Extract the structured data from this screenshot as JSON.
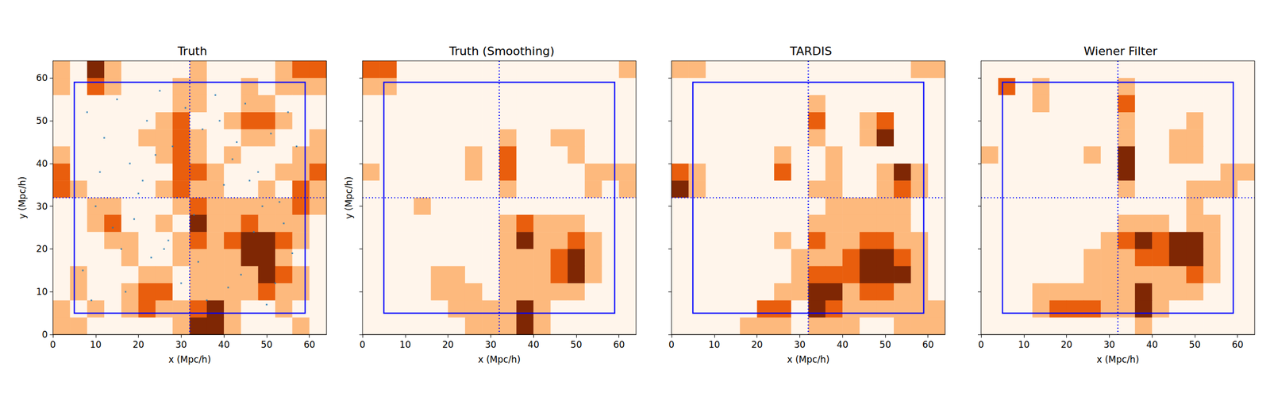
{
  "chart_data": [
    {
      "type": "heatmap",
      "title": "Truth",
      "xlabel": "x (Mpc/h)",
      "ylabel": "y (Mpc/h)",
      "xlim": [
        0,
        64
      ],
      "ylim": [
        0,
        64
      ],
      "xticks": [
        0,
        10,
        20,
        30,
        40,
        50,
        60
      ],
      "yticks": [
        0,
        10,
        20,
        30,
        40,
        50,
        60
      ],
      "box": {
        "x": [
          5,
          59
        ],
        "y": [
          5,
          59
        ]
      },
      "lines": {
        "x": 32,
        "y": 32
      },
      "points": {
        "x": [
          8,
          12,
          15,
          18,
          22,
          25,
          28,
          31,
          35,
          38,
          42,
          45,
          48,
          51,
          55,
          57,
          10,
          14,
          20,
          26,
          33,
          40,
          47,
          53,
          7,
          17,
          23,
          30,
          36,
          44,
          50,
          56,
          11,
          19,
          27,
          34,
          41,
          49,
          54,
          9,
          16,
          24,
          39,
          46,
          52,
          21,
          29,
          43
        ],
        "y": [
          52,
          46,
          55,
          40,
          50,
          57,
          44,
          53,
          48,
          56,
          41,
          54,
          38,
          47,
          52,
          44,
          30,
          25,
          33,
          20,
          28,
          35,
          24,
          31,
          15,
          10,
          18,
          12,
          8,
          14,
          7,
          19,
          38,
          27,
          22,
          17,
          11,
          30,
          26,
          8,
          20,
          42,
          50,
          36,
          12,
          36,
          32,
          45
        ]
      },
      "cells": [
        [
          1,
          0,
          3,
          1,
          0,
          0,
          0,
          0,
          1,
          0,
          0,
          0,
          0,
          1,
          2,
          2
        ],
        [
          1,
          0,
          2,
          1,
          0,
          0,
          0,
          1,
          1,
          0,
          0,
          1,
          0,
          1,
          1,
          1
        ],
        [
          0,
          0,
          0,
          0,
          0,
          0,
          0,
          1,
          1,
          0,
          0,
          1,
          1,
          0,
          0,
          0
        ],
        [
          0,
          0,
          0,
          0,
          0,
          0,
          1,
          2,
          0,
          0,
          1,
          2,
          2,
          1,
          0,
          0
        ],
        [
          0,
          0,
          0,
          0,
          0,
          1,
          1,
          2,
          1,
          0,
          0,
          1,
          1,
          0,
          0,
          1
        ],
        [
          1,
          0,
          0,
          0,
          0,
          0,
          1,
          2,
          1,
          0,
          1,
          0,
          0,
          0,
          1,
          1
        ],
        [
          2,
          0,
          0,
          0,
          0,
          0,
          0,
          2,
          2,
          1,
          0,
          0,
          0,
          1,
          1,
          2
        ],
        [
          2,
          1,
          0,
          0,
          0,
          0,
          1,
          2,
          1,
          1,
          0,
          0,
          1,
          0,
          2,
          1
        ],
        [
          0,
          0,
          1,
          1,
          0,
          0,
          0,
          1,
          2,
          1,
          1,
          1,
          1,
          1,
          2,
          1
        ],
        [
          0,
          0,
          1,
          2,
          0,
          0,
          1,
          0,
          3,
          1,
          1,
          2,
          1,
          1,
          1,
          0
        ],
        [
          0,
          0,
          0,
          1,
          1,
          0,
          0,
          1,
          2,
          1,
          2,
          3,
          3,
          2,
          1,
          0
        ],
        [
          0,
          0,
          0,
          0,
          1,
          0,
          0,
          1,
          1,
          1,
          1,
          3,
          3,
          1,
          0,
          0
        ],
        [
          0,
          1,
          0,
          0,
          0,
          1,
          1,
          0,
          1,
          1,
          1,
          1,
          3,
          2,
          1,
          0
        ],
        [
          0,
          1,
          0,
          0,
          1,
          2,
          2,
          0,
          1,
          1,
          1,
          1,
          2,
          1,
          1,
          0
        ],
        [
          1,
          0,
          1,
          0,
          1,
          2,
          1,
          1,
          2,
          3,
          1,
          0,
          0,
          1,
          0,
          0
        ],
        [
          1,
          1,
          0,
          0,
          0,
          0,
          0,
          1,
          3,
          3,
          1,
          0,
          0,
          0,
          1,
          0
        ]
      ]
    },
    {
      "type": "heatmap",
      "title": "Truth (Smoothing)",
      "xlabel": "x (Mpc/h)",
      "ylabel": "y (Mpc/h)",
      "xlim": [
        0,
        64
      ],
      "ylim": [
        0,
        64
      ],
      "xticks": [
        0,
        10,
        20,
        30,
        40,
        50,
        60
      ],
      "yticks": [
        0,
        10,
        20,
        30,
        40,
        50,
        60
      ],
      "tick_labels": "x",
      "box": {
        "x": [
          5,
          59
        ],
        "y": [
          5,
          59
        ]
      },
      "lines": {
        "x": 32,
        "y": 32
      },
      "cells": [
        [
          2,
          2,
          0,
          0,
          0,
          0,
          0,
          0,
          0,
          0,
          0,
          0,
          0,
          0,
          0,
          1
        ],
        [
          1,
          1,
          0,
          0,
          0,
          0,
          0,
          0,
          0,
          0,
          0,
          0,
          0,
          0,
          0,
          0
        ],
        [
          0,
          0,
          0,
          0,
          0,
          0,
          0,
          0,
          0,
          0,
          0,
          0,
          0,
          0,
          0,
          0
        ],
        [
          0,
          0,
          0,
          0,
          0,
          0,
          0,
          0,
          0,
          0,
          0,
          0,
          0,
          0,
          0,
          0
        ],
        [
          0,
          0,
          0,
          0,
          0,
          0,
          0,
          0,
          1,
          0,
          0,
          1,
          1,
          0,
          0,
          0
        ],
        [
          0,
          0,
          0,
          0,
          0,
          0,
          1,
          0,
          2,
          0,
          0,
          0,
          1,
          0,
          0,
          0
        ],
        [
          1,
          0,
          0,
          0,
          0,
          0,
          1,
          0,
          2,
          0,
          0,
          0,
          0,
          1,
          1,
          1
        ],
        [
          0,
          0,
          0,
          0,
          0,
          0,
          0,
          0,
          1,
          0,
          0,
          0,
          0,
          1,
          0,
          1
        ],
        [
          0,
          0,
          0,
          1,
          0,
          0,
          0,
          0,
          0,
          0,
          0,
          0,
          0,
          0,
          0,
          0
        ],
        [
          0,
          0,
          0,
          0,
          0,
          0,
          0,
          0,
          1,
          2,
          1,
          1,
          1,
          0,
          0,
          0
        ],
        [
          0,
          0,
          0,
          0,
          0,
          0,
          0,
          0,
          1,
          3,
          1,
          1,
          2,
          1,
          0,
          0
        ],
        [
          0,
          0,
          0,
          0,
          0,
          0,
          0,
          0,
          1,
          1,
          1,
          2,
          3,
          1,
          0,
          0
        ],
        [
          0,
          0,
          0,
          0,
          1,
          1,
          0,
          0,
          1,
          1,
          1,
          2,
          3,
          1,
          0,
          0
        ],
        [
          0,
          0,
          0,
          0,
          1,
          1,
          1,
          0,
          1,
          1,
          1,
          1,
          1,
          0,
          0,
          0
        ],
        [
          0,
          0,
          0,
          0,
          0,
          1,
          1,
          1,
          1,
          3,
          1,
          0,
          0,
          0,
          0,
          0
        ],
        [
          0,
          0,
          0,
          0,
          0,
          0,
          1,
          1,
          1,
          3,
          1,
          0,
          0,
          0,
          0,
          0
        ]
      ]
    },
    {
      "type": "heatmap",
      "title": "TARDIS",
      "xlabel": "x (Mpc/h)",
      "xlim": [
        0,
        64
      ],
      "ylim": [
        0,
        64
      ],
      "xticks": [
        0,
        10,
        20,
        30,
        40,
        50,
        60
      ],
      "yticks": [
        0,
        10,
        20,
        30,
        40,
        50,
        60
      ],
      "tick_labels": "x",
      "box": {
        "x": [
          5,
          59
        ],
        "y": [
          5,
          59
        ]
      },
      "lines": {
        "x": 32,
        "y": 32
      },
      "cells": [
        [
          1,
          1,
          0,
          0,
          0,
          0,
          0,
          0,
          0,
          0,
          0,
          0,
          0,
          0,
          1,
          1
        ],
        [
          0,
          0,
          0,
          0,
          0,
          0,
          0,
          0,
          0,
          0,
          0,
          0,
          0,
          0,
          0,
          0
        ],
        [
          0,
          0,
          0,
          0,
          0,
          0,
          0,
          0,
          1,
          0,
          0,
          0,
          0,
          0,
          0,
          0
        ],
        [
          0,
          0,
          0,
          0,
          0,
          0,
          0,
          0,
          2,
          0,
          0,
          1,
          2,
          0,
          0,
          0
        ],
        [
          0,
          0,
          0,
          0,
          0,
          0,
          0,
          0,
          1,
          0,
          0,
          1,
          3,
          0,
          0,
          0
        ],
        [
          0,
          0,
          0,
          0,
          0,
          0,
          1,
          0,
          0,
          1,
          0,
          0,
          0,
          0,
          0,
          0
        ],
        [
          2,
          1,
          0,
          0,
          0,
          0,
          2,
          0,
          0,
          1,
          0,
          0,
          1,
          3,
          1,
          0
        ],
        [
          3,
          1,
          0,
          0,
          0,
          0,
          0,
          0,
          1,
          1,
          0,
          0,
          1,
          2,
          1,
          0
        ],
        [
          0,
          0,
          0,
          0,
          0,
          0,
          0,
          0,
          0,
          1,
          1,
          1,
          1,
          1,
          0,
          0
        ],
        [
          0,
          0,
          0,
          0,
          0,
          0,
          0,
          0,
          1,
          1,
          1,
          1,
          1,
          1,
          0,
          0
        ],
        [
          0,
          0,
          0,
          0,
          0,
          0,
          1,
          0,
          2,
          1,
          1,
          2,
          2,
          1,
          1,
          0
        ],
        [
          0,
          0,
          0,
          0,
          0,
          0,
          0,
          1,
          1,
          1,
          2,
          3,
          3,
          2,
          1,
          0
        ],
        [
          0,
          0,
          0,
          0,
          0,
          0,
          0,
          1,
          2,
          2,
          2,
          3,
          3,
          3,
          1,
          0
        ],
        [
          0,
          0,
          0,
          0,
          0,
          0,
          1,
          1,
          3,
          3,
          1,
          2,
          2,
          1,
          1,
          0
        ],
        [
          0,
          0,
          0,
          0,
          0,
          2,
          2,
          0,
          3,
          2,
          1,
          1,
          1,
          1,
          1,
          1
        ],
        [
          0,
          0,
          0,
          0,
          1,
          1,
          1,
          0,
          1,
          1,
          1,
          0,
          0,
          1,
          1,
          1
        ]
      ]
    },
    {
      "type": "heatmap",
      "title": "Wiener Filter",
      "xlabel": "x (Mpc/h)",
      "xlim": [
        0,
        64
      ],
      "ylim": [
        0,
        64
      ],
      "xticks": [
        0,
        10,
        20,
        30,
        40,
        50,
        60
      ],
      "yticks": [
        0,
        10,
        20,
        30,
        40,
        50,
        60
      ],
      "tick_labels": "x",
      "box": {
        "x": [
          5,
          59
        ],
        "y": [
          5,
          59
        ]
      },
      "lines": {
        "x": 32,
        "y": 32
      },
      "cells": [
        [
          0,
          0,
          0,
          0,
          0,
          0,
          0,
          0,
          0,
          0,
          0,
          0,
          0,
          0,
          0,
          0
        ],
        [
          0,
          2,
          0,
          1,
          0,
          0,
          0,
          0,
          1,
          0,
          0,
          0,
          0,
          0,
          0,
          0
        ],
        [
          0,
          0,
          0,
          1,
          0,
          0,
          0,
          0,
          2,
          0,
          0,
          0,
          0,
          0,
          0,
          0
        ],
        [
          0,
          0,
          0,
          0,
          0,
          0,
          0,
          0,
          1,
          0,
          0,
          0,
          1,
          0,
          0,
          0
        ],
        [
          0,
          0,
          0,
          0,
          0,
          0,
          0,
          0,
          1,
          0,
          0,
          1,
          1,
          0,
          0,
          0
        ],
        [
          1,
          0,
          0,
          0,
          0,
          0,
          1,
          0,
          3,
          0,
          0,
          1,
          1,
          0,
          0,
          0
        ],
        [
          0,
          0,
          0,
          0,
          0,
          0,
          0,
          0,
          3,
          0,
          0,
          0,
          0,
          0,
          1,
          1
        ],
        [
          0,
          0,
          0,
          0,
          0,
          0,
          0,
          0,
          1,
          0,
          0,
          0,
          1,
          1,
          1,
          0
        ],
        [
          0,
          0,
          0,
          0,
          0,
          0,
          0,
          0,
          0,
          0,
          0,
          0,
          1,
          0,
          0,
          0
        ],
        [
          0,
          0,
          0,
          0,
          0,
          0,
          0,
          0,
          1,
          1,
          1,
          0,
          1,
          1,
          0,
          0
        ],
        [
          0,
          0,
          0,
          0,
          0,
          0,
          0,
          1,
          2,
          3,
          2,
          3,
          3,
          1,
          0,
          0
        ],
        [
          0,
          0,
          0,
          0,
          0,
          0,
          1,
          1,
          1,
          2,
          2,
          3,
          3,
          1,
          0,
          0
        ],
        [
          0,
          0,
          0,
          0,
          0,
          0,
          1,
          1,
          1,
          1,
          1,
          1,
          2,
          1,
          0,
          0
        ],
        [
          0,
          0,
          0,
          1,
          1,
          1,
          1,
          1,
          1,
          3,
          1,
          1,
          1,
          0,
          0,
          0
        ],
        [
          0,
          0,
          0,
          1,
          2,
          2,
          2,
          1,
          1,
          3,
          1,
          0,
          0,
          0,
          0,
          0
        ],
        [
          0,
          0,
          0,
          0,
          0,
          0,
          0,
          0,
          0,
          1,
          0,
          0,
          0,
          0,
          0,
          0
        ]
      ]
    }
  ]
}
